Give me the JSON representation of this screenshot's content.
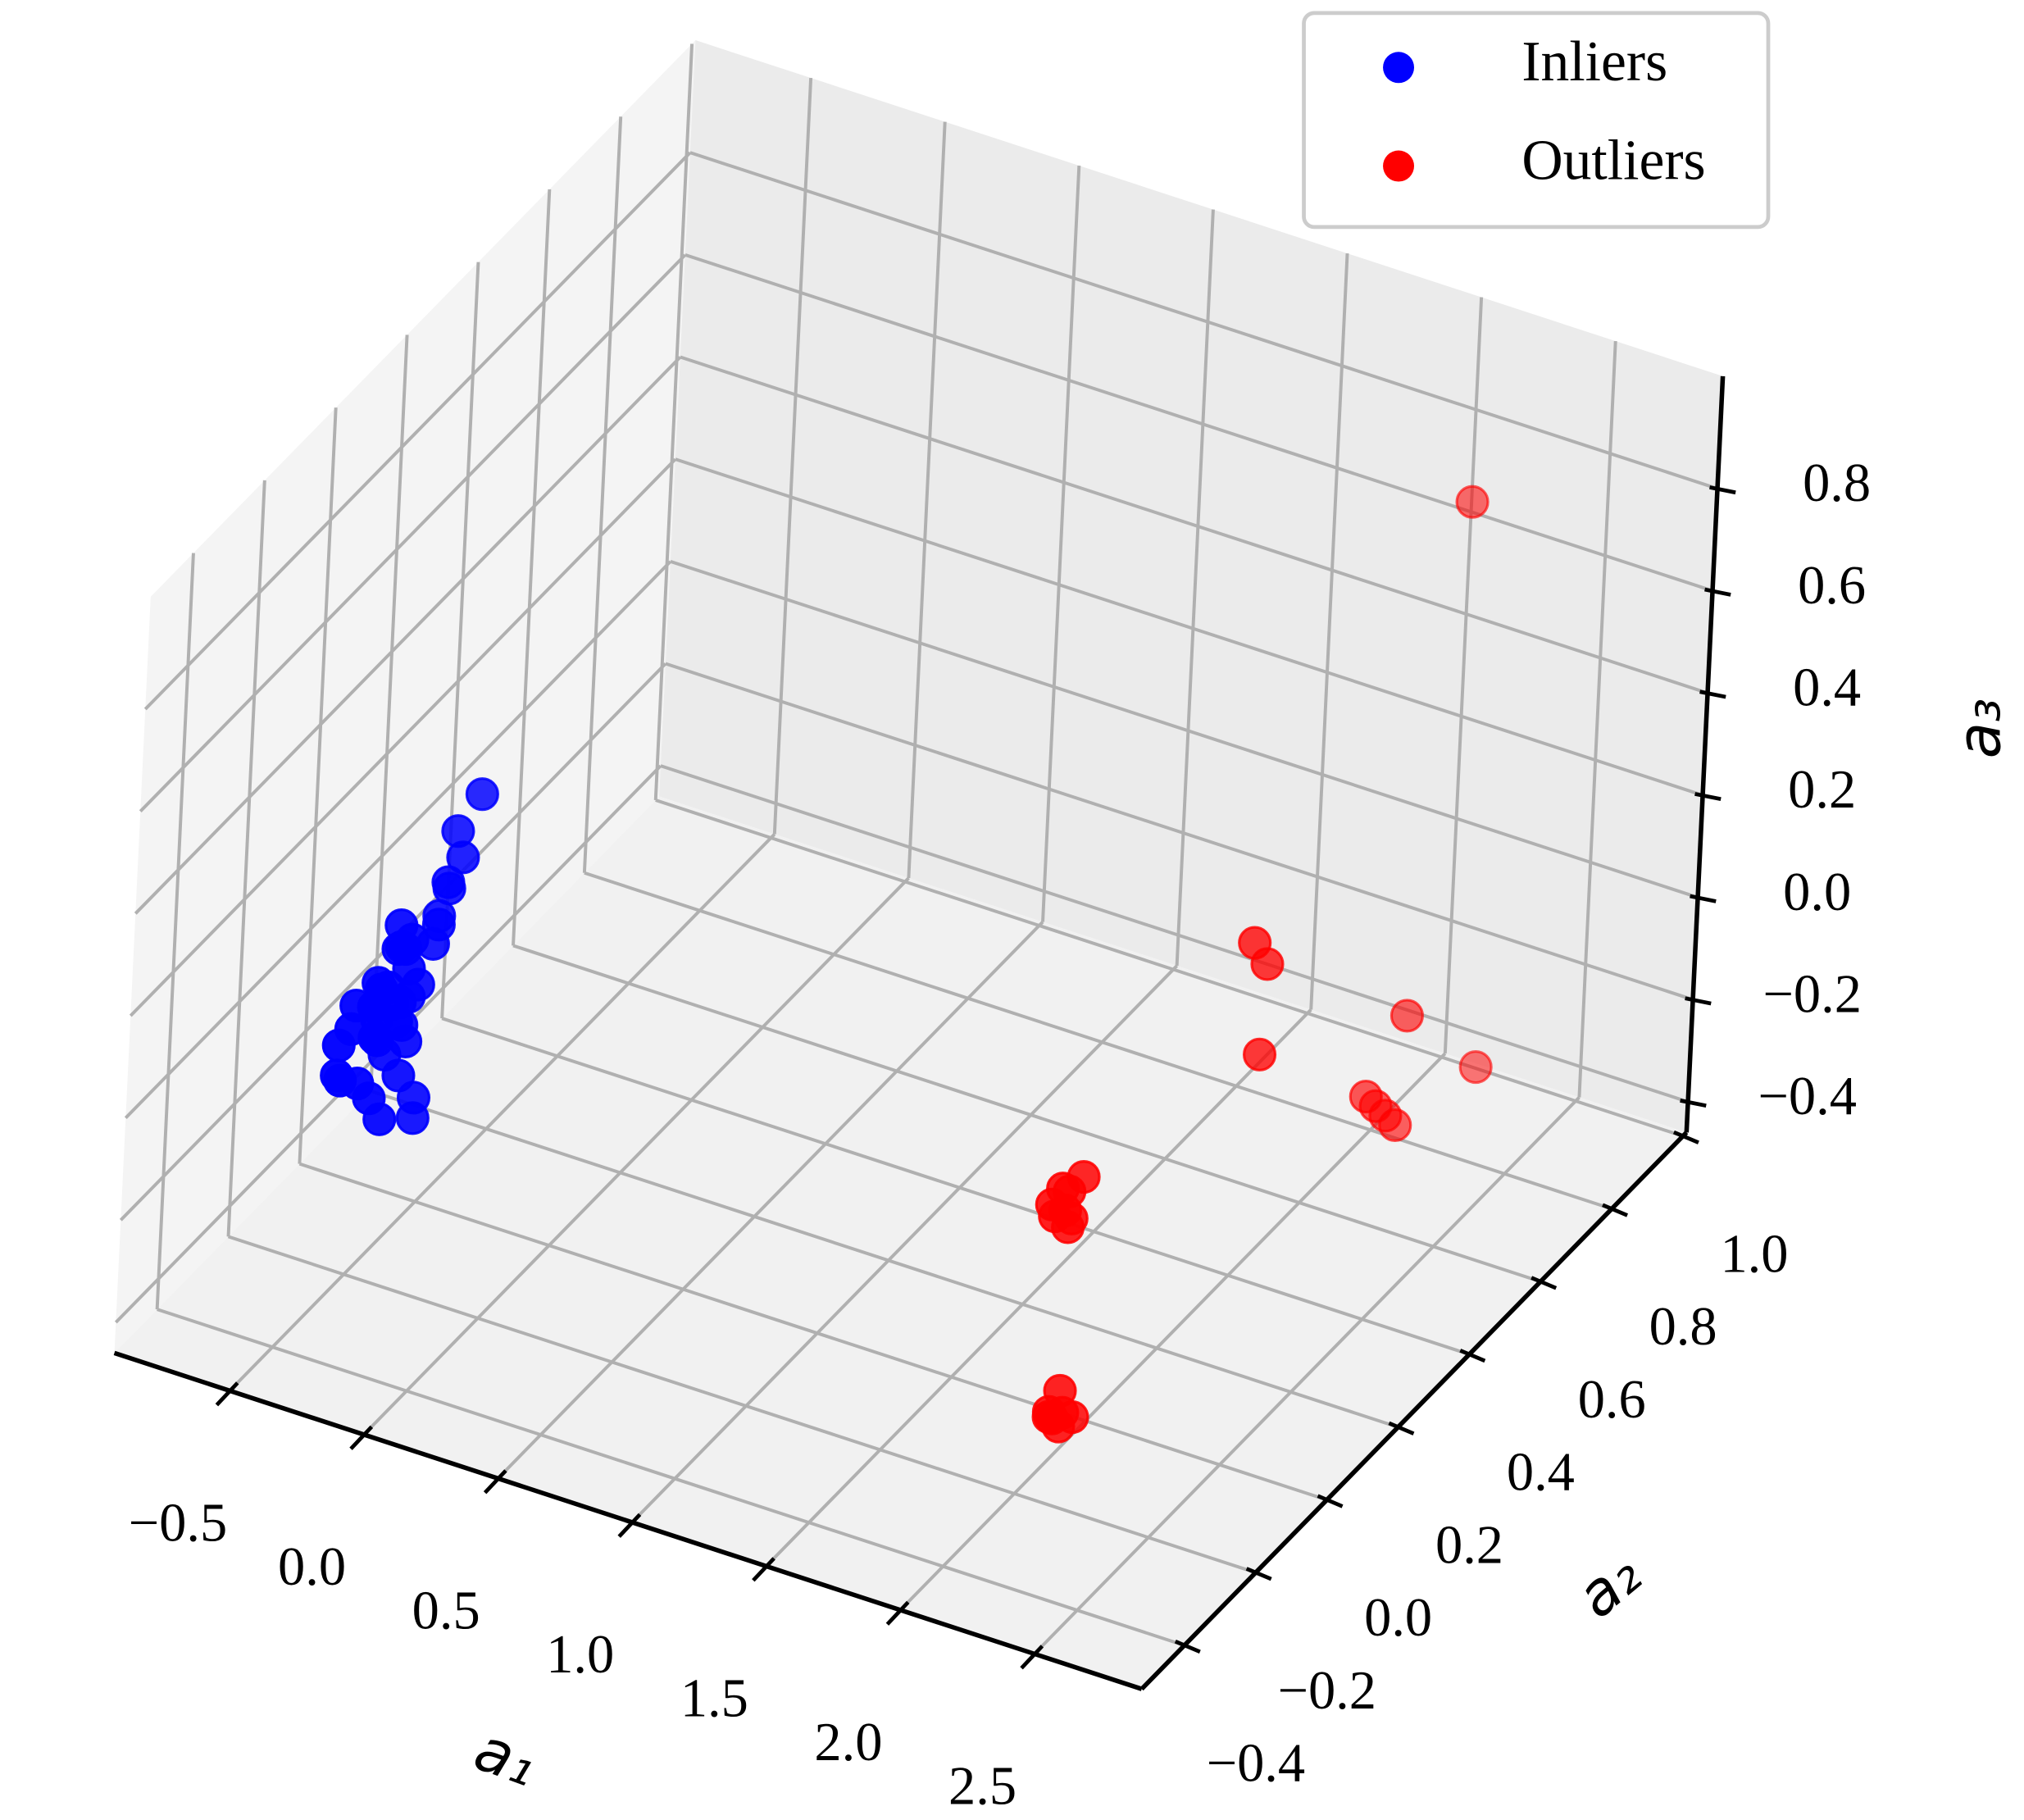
{
  "chart_data": {
    "type": "scatter3d",
    "xlabel": "a₁",
    "ylabel": "a₂",
    "zlabel": "a₃",
    "xlim": [
      -0.93,
      2.9
    ],
    "ylim": [
      -0.52,
      1.01
    ],
    "zlim": [
      -0.46,
      1.02
    ],
    "xticks": [
      {
        "value": -0.5,
        "label": "−0.5"
      },
      {
        "value": 0,
        "label": "0.0"
      },
      0.5,
      {
        "value": 1,
        "label": "1.0"
      },
      1.5,
      {
        "value": 2,
        "label": "2.0"
      },
      2.5
    ],
    "yticks": [
      {
        "value": -0.4,
        "label": "−0.4"
      },
      {
        "value": -0.2,
        "label": "−0.2"
      },
      {
        "value": 0,
        "label": "0.0"
      },
      0.2,
      0.4,
      0.6,
      0.8,
      {
        "value": 1,
        "label": "1.0"
      }
    ],
    "zticks": [
      {
        "value": -0.4,
        "label": "−0.4"
      },
      {
        "value": -0.2,
        "label": "−0.2"
      },
      {
        "value": 0,
        "label": "0.0"
      },
      0.2,
      0.4,
      0.6,
      0.8
    ],
    "grid": true,
    "legend": "upper right",
    "series": [
      {
        "name": "Inliers",
        "color": "#0000ff",
        "x": [
          -0.2,
          -0.18,
          -0.22,
          -0.25,
          -0.15,
          -0.2,
          -0.19,
          -0.21,
          -0.23,
          -0.17,
          -0.2,
          -0.24,
          -0.16,
          -0.2,
          -0.22,
          -0.18,
          -0.21,
          -0.19,
          -0.2,
          -0.26,
          -0.14,
          -0.2,
          -0.22,
          -0.17,
          -0.2,
          -0.19,
          -0.23,
          -0.21,
          -0.18,
          -0.2,
          -0.2,
          -0.22,
          -0.16,
          -0.24,
          -0.19,
          -0.2,
          -0.21,
          -0.18,
          -0.2,
          -0.17
        ],
        "y": [
          -0.35,
          -0.4,
          -0.3,
          -0.45,
          -0.25,
          -0.38,
          -0.33,
          -0.42,
          -0.28,
          -0.36,
          -0.48,
          -0.32,
          -0.22,
          -0.1,
          -0.15,
          -0.2,
          -0.3,
          -0.4,
          -0.26,
          -0.44,
          -0.34,
          -0.37,
          -0.29,
          -0.31,
          -0.39,
          -0.27,
          -0.43,
          -0.35,
          -0.24,
          -0.26,
          -0.32,
          -0.36,
          -0.18,
          -0.41,
          -0.3,
          -0.38,
          -0.28,
          -0.33,
          -0.21,
          -0.35
        ],
        "z": [
          0.26,
          0.2,
          0.3,
          0.15,
          0.32,
          0.22,
          0.18,
          0.12,
          0.28,
          0.24,
          0.17,
          0.1,
          0.38,
          0.46,
          0.42,
          0.35,
          0.05,
          0.08,
          -0.02,
          0.2,
          0.3,
          0.27,
          0.14,
          0.33,
          0.25,
          0.21,
          0.23,
          0.0,
          0.27,
          -0.06,
          0.36,
          0.16,
          0.4,
          0.26,
          0.12,
          0.29,
          0.19,
          0.22,
          0.3,
          0.34
        ]
      },
      {
        "name": "Outliers",
        "color": "#ff0000",
        "x": [
          2.5,
          2.5,
          2.5,
          2.5,
          2.5,
          2.5,
          2.5,
          2.5,
          2.5,
          2.5,
          2.1,
          2.1,
          2.1,
          2.1,
          2.1,
          2.1,
          2.1,
          2.1,
          2.1,
          2.1,
          2.1,
          2.1,
          2.1,
          2.1,
          2.1
        ],
        "y": [
          0.61,
          0.03,
          0.07,
          0.49,
          0.06,
          0.7,
          0.38,
          0.41,
          0.44,
          0.47,
          -0.21,
          -0.18,
          -0.16,
          -0.12,
          -0.2,
          -0.17,
          -0.16,
          -0.15,
          -0.19,
          -0.16,
          -0.18,
          -0.19,
          -0.15,
          -0.12,
          -0.16
        ],
        "z": [
          0.99,
          0.54,
          0.47,
          0.07,
          0.3,
          -0.18,
          -0.01,
          -0.05,
          -0.09,
          -0.13,
          0.13,
          0.14,
          0.12,
          0.12,
          0.1,
          0.09,
          0.05,
          0.06,
          -0.29,
          -0.27,
          -0.31,
          -0.3,
          -0.32,
          -0.35,
          -0.34
        ]
      }
    ]
  }
}
